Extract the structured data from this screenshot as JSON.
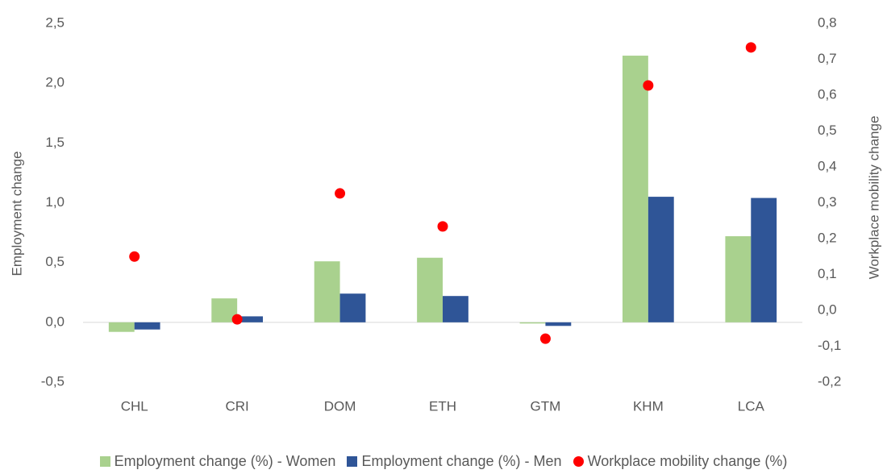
{
  "chart_data": {
    "type": "bar",
    "categories": [
      "CHL",
      "CRI",
      "DOM",
      "ETH",
      "GTM",
      "KHM",
      "LCA"
    ],
    "series": [
      {
        "name": "Employment change (%) - Women",
        "color": "#a9d18e",
        "values": [
          -0.08,
          0.2,
          0.51,
          0.54,
          -0.01,
          2.23,
          0.72
        ]
      },
      {
        "name": "Employment change (%) - Men",
        "color": "#2f5597",
        "values": [
          -0.06,
          0.05,
          0.24,
          0.22,
          -0.03,
          1.05,
          1.04
        ]
      },
      {
        "name": "Workplace mobility change (%)",
        "color": "#ff0000",
        "type": "scatter",
        "axis": "y2",
        "values": [
          0.15,
          -0.025,
          0.326,
          0.234,
          -0.079,
          0.627,
          0.733
        ]
      }
    ],
    "ylabel": "Employment change",
    "y2label": "Workplace mobility change",
    "ylim": [
      -0.5,
      2.5
    ],
    "yticks": [
      {
        "value": -0.5,
        "label": "-0,5"
      },
      {
        "value": 0,
        "label": "0,0"
      },
      {
        "value": 0.5,
        "label": "0,5"
      },
      {
        "value": 1,
        "label": "1,0"
      },
      {
        "value": 1.5,
        "label": "1,5"
      },
      {
        "value": 2,
        "label": "2,0"
      },
      {
        "value": 2.5,
        "label": "2,5"
      }
    ],
    "y2lim": [
      -0.2,
      0.8
    ],
    "y2ticks": [
      {
        "value": -0.2,
        "label": "-0,2"
      },
      {
        "value": -0.1,
        "label": "-0,1"
      },
      {
        "value": 0,
        "label": "0,0"
      },
      {
        "value": 0.1,
        "label": "0,1"
      },
      {
        "value": 0.2,
        "label": "0,2"
      },
      {
        "value": 0.3,
        "label": "0,3"
      },
      {
        "value": 0.4,
        "label": "0,4"
      },
      {
        "value": 0.5,
        "label": "0,5"
      },
      {
        "value": 0.6,
        "label": "0,6"
      },
      {
        "value": 0.7,
        "label": "0,7"
      },
      {
        "value": 0.8,
        "label": "0,8"
      }
    ],
    "grid": false,
    "legend": "bottom"
  }
}
